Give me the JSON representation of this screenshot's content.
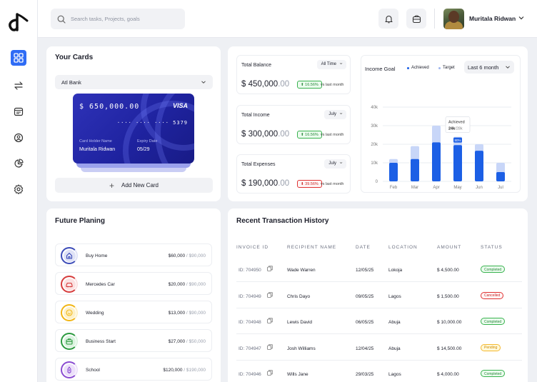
{
  "search": {
    "placeholder": "Search tasks, Projects, goals"
  },
  "user": {
    "name": "Muritala Ridwan"
  },
  "nav": [
    "dashboard",
    "transfer",
    "calendar",
    "profile",
    "analytics",
    "settings"
  ],
  "cards": {
    "title": "Your Cards",
    "bank": "Atl Bank",
    "balance": "$ 650,000.00",
    "brand": "VISA",
    "number": "···· ···· ···· 5379",
    "holder_label": "Card Holder Name",
    "holder": "Muritala Ridwan",
    "expiry_label": "Expiry Date",
    "expiry": "05/29",
    "add_label": "Add New Card"
  },
  "stats": [
    {
      "label": "Total Balance",
      "period": "All Time",
      "value": "450,000",
      "cents": ".00",
      "change": "16.56%",
      "trend": "up",
      "note": "vs last month"
    },
    {
      "label": "Total Income",
      "period": "July",
      "value": "300,000",
      "cents": ".00",
      "change": "16.56%",
      "trend": "up",
      "note": "vs last month"
    },
    {
      "label": "Total Expenses",
      "period": "July",
      "value": "190,000",
      "cents": ".00",
      "change": "39.56%",
      "trend": "down",
      "note": "vs last month"
    }
  ],
  "currency": "$",
  "goal": {
    "title": "Income Goal",
    "legend_achieved": "Achieved",
    "legend_target": "Target",
    "period": "Last 6 month",
    "tooltip_title": "Achieved",
    "tooltip_value": "24k",
    "tooltip_target": "/28k",
    "tooltip_pct": "80%"
  },
  "chart_data": {
    "type": "bar",
    "categories": [
      "Feb",
      "Mar",
      "Apr",
      "May",
      "Jun",
      "Jul"
    ],
    "series": [
      {
        "name": "Achieved",
        "values": [
          10,
          12,
          21,
          19.5,
          16.5,
          5
        ]
      },
      {
        "name": "Target",
        "values": [
          12,
          19,
          30,
          24,
          20,
          10
        ]
      }
    ],
    "yticks": [
      "0",
      "10k",
      "20k",
      "30k",
      "40k"
    ],
    "ylim": [
      0,
      40
    ],
    "grid": true,
    "colors": {
      "achieved": "#1c5fe5",
      "target": "#c8d6f8"
    }
  },
  "planning": {
    "title": "Future Planing",
    "items": [
      {
        "label": "Buy Home",
        "amount": "$60,000",
        "target": " / $90,000",
        "color": "#3b4bb8",
        "tint": "#dfe2f6",
        "icon": "home-icon"
      },
      {
        "label": "Mercedes Car",
        "amount": "$20,000",
        "target": " / $90,000",
        "color": "#d63b3b",
        "tint": "#fbe1e1",
        "icon": "car-icon"
      },
      {
        "label": "Wedding",
        "amount": "$13,000",
        "target": " / $90,000",
        "color": "#f1b514",
        "tint": "#fdf1c8",
        "icon": "smile-icon"
      },
      {
        "label": "Business Start",
        "amount": "$27,000",
        "target": " / $50,000",
        "color": "#2b9a3e",
        "tint": "#dcf3e0",
        "icon": "briefcase-icon"
      },
      {
        "label": "School",
        "amount": "$120,000",
        "target": " / $190,000",
        "color": "#8a4bd1",
        "tint": "#ece0fa",
        "icon": "pen-icon"
      }
    ]
  },
  "transactions": {
    "title": "Recent Transaction History",
    "headers": [
      "INVOICE ID",
      "RECIPIENT NAME",
      "DATE",
      "LOCATION",
      "AMOUNT",
      "STATUS"
    ],
    "rows": [
      {
        "id": "ID: 704950",
        "name": "Wade Warren",
        "date": "12/05/25",
        "location": "Lokoja",
        "amount": "$ 4,500.00",
        "status": "Completed"
      },
      {
        "id": "ID: 704949",
        "name": "Chris Dayo",
        "date": "09/05/25",
        "location": "Lagos",
        "amount": "$ 1,500.00",
        "status": "Cancelled"
      },
      {
        "id": "ID: 704948",
        "name": "Lewis David",
        "date": "06/05/25",
        "location": "Abuja",
        "amount": "$ 10,000.00",
        "status": "Completed"
      },
      {
        "id": "ID: 704947",
        "name": "Josh Williams",
        "date": "12/04/25",
        "location": "Abuja",
        "amount": "$ 14,500.00",
        "status": "Pending"
      },
      {
        "id": "ID: 704946",
        "name": "Wills Jane",
        "date": "29/03/25",
        "location": "Lagos",
        "amount": "$ 4,000.00",
        "status": "Completed"
      }
    ]
  }
}
